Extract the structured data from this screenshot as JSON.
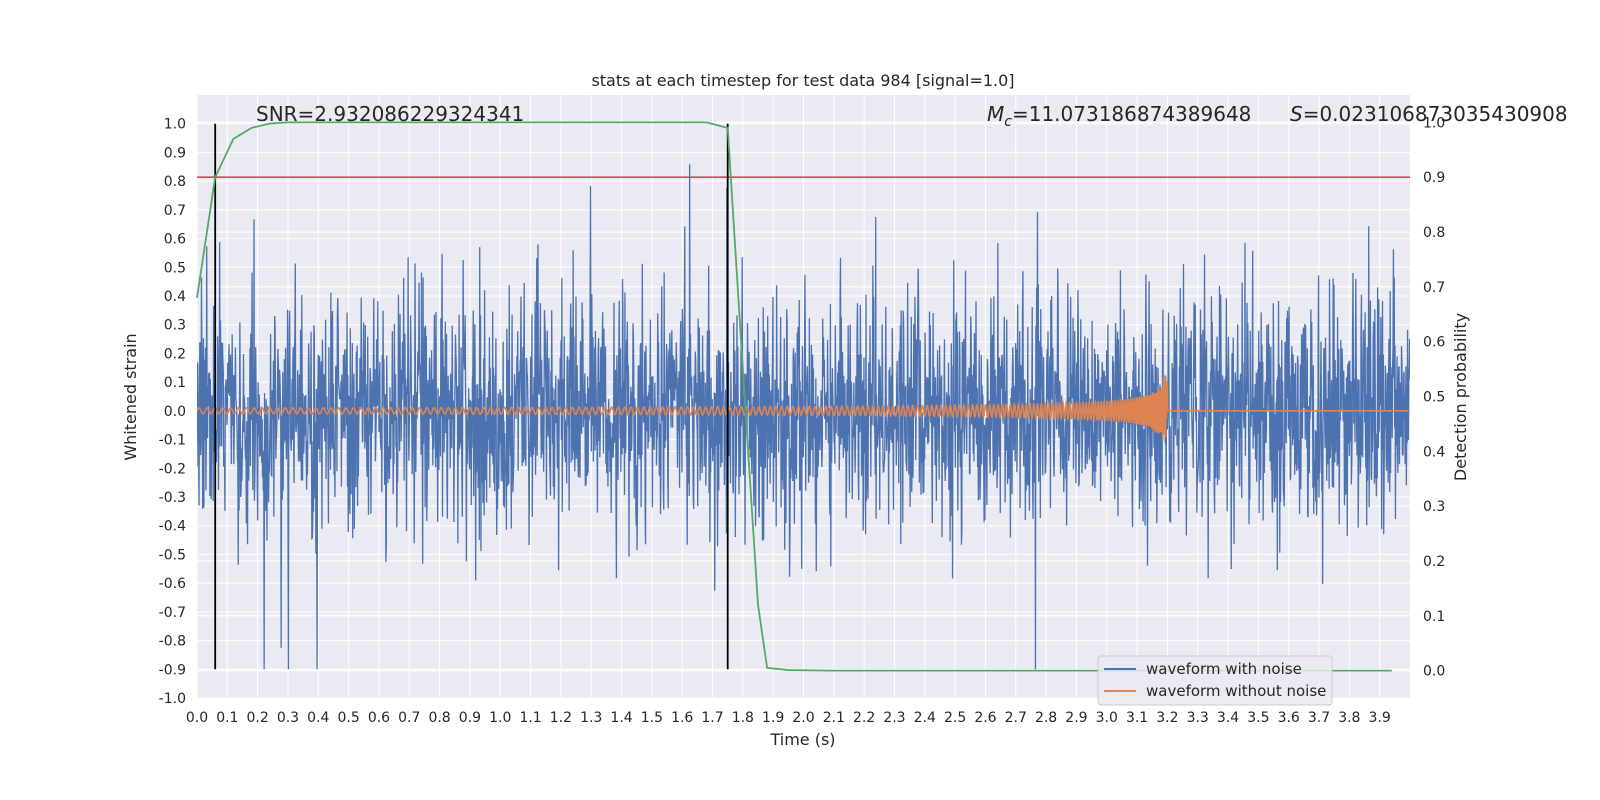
{
  "chart_data": {
    "type": "line",
    "title": "stats at each timestep for test data 984 [signal=1.0]",
    "xlabel": "Time (s)",
    "ylabel": "Whitened strain",
    "y2label": "Detection probability",
    "xlim": [
      0.0,
      4.0
    ],
    "ylim": [
      -1.0,
      1.1
    ],
    "y2lim": [
      -0.05,
      1.05
    ],
    "xticks": [
      "0.0",
      "0.1",
      "0.2",
      "0.3",
      "0.4",
      "0.5",
      "0.6",
      "0.7",
      "0.8",
      "0.9",
      "1.0",
      "1.1",
      "1.2",
      "1.3",
      "1.4",
      "1.5",
      "1.6",
      "1.7",
      "1.8",
      "1.9",
      "2.0",
      "2.1",
      "2.2",
      "2.3",
      "2.4",
      "2.5",
      "2.6",
      "2.7",
      "2.8",
      "2.9",
      "3.0",
      "3.1",
      "3.2",
      "3.3",
      "3.4",
      "3.5",
      "3.6",
      "3.7",
      "3.8",
      "3.9"
    ],
    "yticks": [
      "1.0",
      "0.9",
      "0.8",
      "0.7",
      "0.6",
      "0.5",
      "0.4",
      "0.3",
      "0.2",
      "0.1",
      "0.0",
      "-0.1",
      "-0.2",
      "-0.3",
      "-0.4",
      "-0.5",
      "-0.6",
      "-0.7",
      "-0.8",
      "-0.9",
      "-1.0"
    ],
    "y2ticks": [
      "1.0",
      "0.9",
      "0.8",
      "0.7",
      "0.6",
      "0.5",
      "0.4",
      "0.3",
      "0.2",
      "0.1",
      "0.0"
    ],
    "grid": true,
    "legend_position": "bottom-right",
    "annotations": {
      "snr": "SNR=2.932086229324341",
      "mc": "M_c=11.073186874389648",
      "mc_symbol": "M",
      "mc_subscript": "c",
      "mc_value": "=11.073186874389648",
      "s": "S=0.023106873035430908",
      "s_symbol": "S",
      "s_value": "=0.023106873035430908"
    },
    "threshold": {
      "value": 0.9,
      "color": "#c44e52"
    },
    "vertical_markers": {
      "x": [
        0.06,
        1.75
      ],
      "ymin": -0.9,
      "ymax": 1.0,
      "color": "#000000"
    },
    "series": [
      {
        "name": "waveform with noise",
        "color": "#4c72b0",
        "axis": "left",
        "description_values": {
          "typical_envelope": [
            -0.45,
            0.45
          ],
          "peak_max": 1.0,
          "peak_min": -0.9
        }
      },
      {
        "name": "waveform without noise",
        "color": "#dd8452",
        "axis": "left",
        "chirp": {
          "start_amplitude": 0.01,
          "merger_time": 3.2,
          "peak_amplitude": 0.13
        }
      },
      {
        "name": "detection probability",
        "color": "#55a868",
        "axis": "right",
        "x": [
          0.0,
          0.06,
          0.12,
          0.18,
          0.24,
          0.3,
          0.4,
          0.6,
          1.0,
          1.4,
          1.6,
          1.68,
          1.75,
          1.8,
          1.85,
          1.88,
          1.95,
          2.1,
          2.4,
          3.0,
          3.5,
          3.94
        ],
        "values": [
          0.68,
          0.9,
          0.97,
          0.99,
          0.998,
          1.0,
          1.0,
          1.0,
          1.0,
          1.0,
          1.0,
          1.0,
          0.99,
          0.55,
          0.12,
          0.005,
          0.001,
          0.0,
          0.0,
          0.0,
          0.0,
          0.0
        ]
      }
    ],
    "colors": {
      "background": "#eaeaf2",
      "grid": "#ffffff",
      "text": "#262626"
    }
  }
}
